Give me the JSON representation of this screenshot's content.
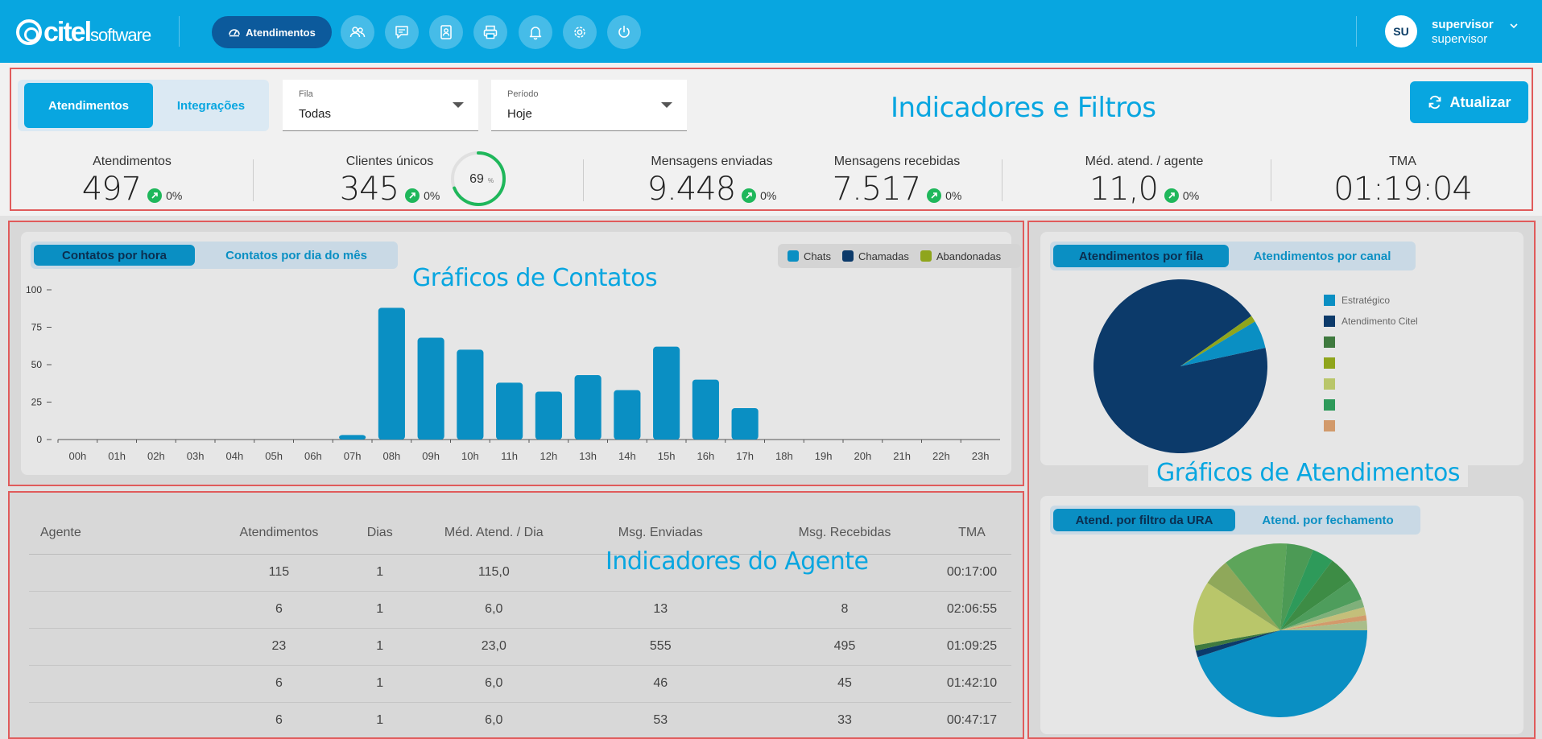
{
  "brand": {
    "logo_main": "citel",
    "logo_sub": "software"
  },
  "nav": {
    "active_label": "Atendimentos",
    "icons": [
      "users-icon",
      "chat-icon",
      "contacts-icon",
      "printer-icon",
      "bell-icon",
      "gear-icon",
      "power-icon"
    ]
  },
  "user": {
    "initials": "SU",
    "name": "supervisor",
    "role": "supervisor"
  },
  "filters": {
    "tabs": [
      "Atendimentos",
      "Integrações"
    ],
    "fila": {
      "label": "Fila",
      "value": "Todas"
    },
    "periodo": {
      "label": "Período",
      "value": "Hoje"
    },
    "title": "Indicadores e Filtros",
    "refresh_label": "Atualizar"
  },
  "stats": [
    {
      "label": "Atendimentos",
      "value": "497",
      "trend": "0%"
    },
    {
      "label": "Clientes únicos",
      "value": "345",
      "trend": "0%"
    },
    {
      "label": "Mensagens enviadas",
      "value": "9.448",
      "trend": "0%"
    },
    {
      "label": "Mensagens recebidas",
      "value": "7.517",
      "trend": "0%"
    },
    {
      "label": "Méd. atend. / agente",
      "value": "11,0",
      "trend": "0%"
    },
    {
      "label": "TMA",
      "value": "01:19:04"
    }
  ],
  "gauge": {
    "value": "69",
    "unit": "%",
    "fraction": 0.69
  },
  "contacts": {
    "tabs": [
      "Contatos por hora",
      "Contatos por dia do mês"
    ],
    "title": "Gráficos de Contatos",
    "legend": [
      {
        "name": "Chats",
        "color": "#0a8fc3"
      },
      {
        "name": "Chamadas",
        "color": "#0c3a6a"
      },
      {
        "name": "Abandonadas",
        "color": "#8fa51c"
      }
    ]
  },
  "chart_data": {
    "type": "bar",
    "categories": [
      "00h",
      "01h",
      "02h",
      "03h",
      "04h",
      "05h",
      "06h",
      "07h",
      "08h",
      "09h",
      "10h",
      "11h",
      "12h",
      "13h",
      "14h",
      "15h",
      "16h",
      "17h",
      "18h",
      "19h",
      "20h",
      "21h",
      "22h",
      "23h"
    ],
    "series": [
      {
        "name": "Chats",
        "values": [
          0,
          0,
          0,
          0,
          0,
          0,
          0,
          3,
          88,
          68,
          60,
          38,
          32,
          43,
          33,
          62,
          40,
          21,
          0,
          0,
          0,
          0,
          0,
          0
        ]
      }
    ],
    "yticks": [
      0,
      25,
      50,
      75,
      100
    ],
    "ylim": [
      0,
      100
    ],
    "title": "",
    "xlabel": "",
    "ylabel": ""
  },
  "atendimentos_charts": {
    "tabs_top": [
      "Atendimentos por fila",
      "Atendimentos por canal"
    ],
    "title": "Gráficos de Atendimentos",
    "tabs_bottom": [
      "Atend. por filtro da URA",
      "Atend. por fechamento"
    ],
    "pie1_legend": [
      {
        "name": "Estratégico",
        "color": "#0a8fc3"
      },
      {
        "name": "Atendimento Citel",
        "color": "#0c3a6a"
      },
      {
        "name": "",
        "color": "#3f7a3f"
      },
      {
        "name": "",
        "color": "#8fa51c"
      },
      {
        "name": "",
        "color": "#b9c66a"
      },
      {
        "name": "",
        "color": "#2e9a5a"
      },
      {
        "name": "",
        "color": "#d29a6b"
      }
    ],
    "pie1_slices": [
      {
        "name": "Atendimento Citel",
        "value": 0.936,
        "color": "#0c3a6a"
      },
      {
        "name": "",
        "value": 0.012,
        "color": "#8fa51c"
      },
      {
        "name": "Estratégico",
        "value": 0.052,
        "color": "#0a8fc3"
      }
    ],
    "pie2_slices": [
      {
        "value": 0.45,
        "color": "#0a8fc3"
      },
      {
        "value": 0.012,
        "color": "#0c3a6a"
      },
      {
        "value": 0.01,
        "color": "#3f7a3f"
      },
      {
        "value": 0.12,
        "color": "#b9c66a"
      },
      {
        "value": 0.05,
        "color": "#8fa85a"
      },
      {
        "value": 0.12,
        "color": "#5da55a"
      },
      {
        "value": 0.05,
        "color": "#4c9a55"
      },
      {
        "value": 0.04,
        "color": "#2e9a5a"
      },
      {
        "value": 0.05,
        "color": "#3d8c45"
      },
      {
        "value": 0.04,
        "color": "#4e9d5c"
      },
      {
        "value": 0.015,
        "color": "#7fb07a"
      },
      {
        "value": 0.015,
        "color": "#c4bf7a"
      },
      {
        "value": 0.01,
        "color": "#d29a6b"
      },
      {
        "value": 0.018,
        "color": "#a9bd8a"
      }
    ]
  },
  "agents": {
    "title": "Indicadores do Agente",
    "columns": [
      "Agente",
      "Atendimentos",
      "Dias",
      "Méd. Atend. / Dia",
      "Msg. Enviadas",
      "Msg. Recebidas",
      "TMA"
    ],
    "rows": [
      [
        "",
        "115",
        "1",
        "115,0",
        "",
        "",
        "00:17:00"
      ],
      [
        "",
        "6",
        "1",
        "6,0",
        "13",
        "8",
        "02:06:55"
      ],
      [
        "",
        "23",
        "1",
        "23,0",
        "555",
        "495",
        "01:09:25"
      ],
      [
        "",
        "6",
        "1",
        "6,0",
        "46",
        "45",
        "01:42:10"
      ],
      [
        "",
        "6",
        "1",
        "6,0",
        "53",
        "33",
        "00:47:17"
      ]
    ]
  }
}
